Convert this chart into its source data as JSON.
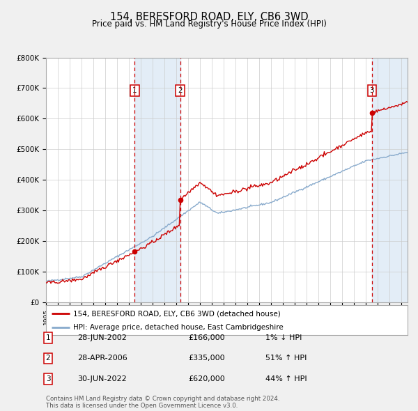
{
  "title": "154, BERESFORD ROAD, ELY, CB6 3WD",
  "subtitle": "Price paid vs. HM Land Registry's House Price Index (HPI)",
  "sales": [
    {
      "label": "1",
      "year": 2002.49,
      "price": 166000,
      "date": "28-JUN-2002",
      "pct": "1%",
      "dir": "↓"
    },
    {
      "label": "2",
      "year": 2006.32,
      "price": 335000,
      "date": "28-APR-2006",
      "pct": "51%",
      "dir": "↑"
    },
    {
      "label": "3",
      "year": 2022.49,
      "price": 620000,
      "date": "30-JUN-2022",
      "pct": "44%",
      "dir": "↑"
    }
  ],
  "legend_line1": "154, BERESFORD ROAD, ELY, CB6 3WD (detached house)",
  "legend_line2": "HPI: Average price, detached house, East Cambridgeshire",
  "footer": "Contains HM Land Registry data © Crown copyright and database right 2024.\nThis data is licensed under the Open Government Licence v3.0.",
  "ylim": [
    0,
    800000
  ],
  "xlim": [
    1995,
    2025.5
  ],
  "yticks": [
    0,
    100000,
    200000,
    300000,
    400000,
    500000,
    600000,
    700000,
    800000
  ],
  "ytick_labels": [
    "£0",
    "£100K",
    "£200K",
    "£300K",
    "£400K",
    "£500K",
    "£600K",
    "£700K",
    "£800K"
  ],
  "bg_color": "#f0f0f0",
  "plot_bg": "#ffffff",
  "red_color": "#cc0000",
  "blue_color": "#88aacc",
  "shade_color": "#dce9f5",
  "grid_color": "#cccccc"
}
